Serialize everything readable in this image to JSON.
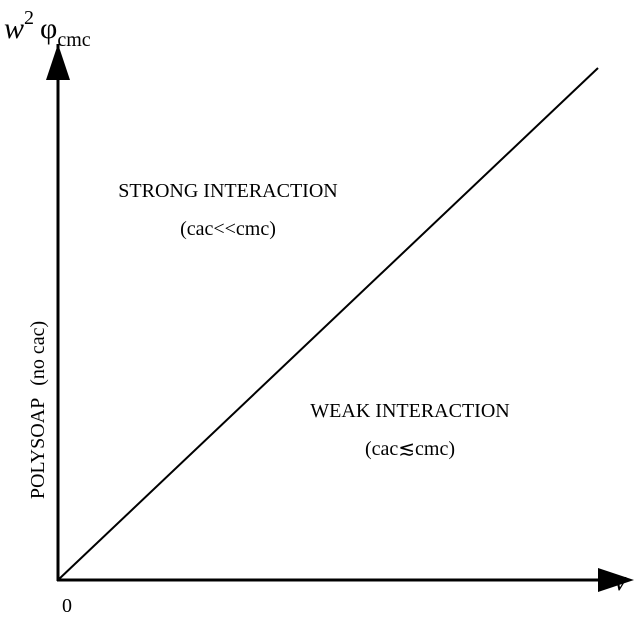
{
  "axes": {
    "y_label": {
      "base": "w",
      "superscript": "2",
      "symbol": "φ",
      "subscript": "cmc"
    },
    "x_label": "v",
    "origin": "0"
  },
  "regions": [
    {
      "title": "STRONG INTERACTION",
      "condition": "(cac<<cmc)"
    },
    {
      "title": "WEAK INTERACTION",
      "condition": "(cac≲cmc)"
    }
  ],
  "side_label": {
    "main": "POLYSOAP",
    "note": "(no cac)"
  }
}
